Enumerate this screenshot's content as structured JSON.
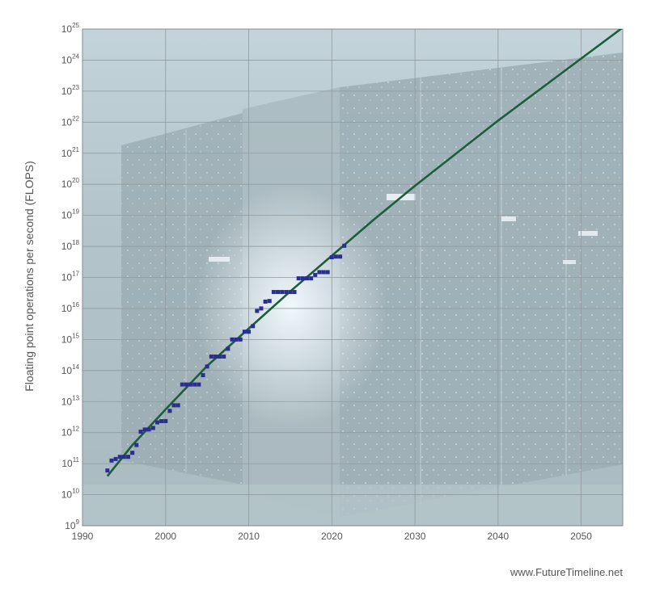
{
  "chart_data": {
    "type": "scatter",
    "ylabel": "Floating point operations per second (FLOPS)",
    "xlim": [
      1990,
      2055
    ],
    "ylim_log10": [
      9,
      25
    ],
    "yscale": "log",
    "grid": true,
    "x_ticks": [
      "1990",
      "2000",
      "2010",
      "2020",
      "2030",
      "2040",
      "2050"
    ],
    "y_ticks": [
      {
        "base": "10",
        "exp": "9"
      },
      {
        "base": "10",
        "exp": "10"
      },
      {
        "base": "10",
        "exp": "11"
      },
      {
        "base": "10",
        "exp": "12"
      },
      {
        "base": "10",
        "exp": "13"
      },
      {
        "base": "10",
        "exp": "14"
      },
      {
        "base": "10",
        "exp": "15"
      },
      {
        "base": "10",
        "exp": "16"
      },
      {
        "base": "10",
        "exp": "17"
      },
      {
        "base": "10",
        "exp": "18"
      },
      {
        "base": "10",
        "exp": "19"
      },
      {
        "base": "10",
        "exp": "20"
      },
      {
        "base": "10",
        "exp": "21"
      },
      {
        "base": "10",
        "exp": "22"
      },
      {
        "base": "10",
        "exp": "23"
      },
      {
        "base": "10",
        "exp": "24"
      },
      {
        "base": "10",
        "exp": "25"
      }
    ],
    "series": [
      {
        "kind": "scatter",
        "color": "#2a2f8f",
        "x": [
          1993.0,
          1993.5,
          1994.0,
          1994.5,
          1995.0,
          1995.5,
          1996.0,
          1996.5,
          1997.0,
          1997.5,
          1998.0,
          1998.5,
          1999.0,
          1999.5,
          2000.0,
          2000.5,
          2001.0,
          2001.5,
          2002.0,
          2002.5,
          2003.0,
          2003.5,
          2004.0,
          2004.5,
          2005.0,
          2005.5,
          2006.0,
          2006.5,
          2007.0,
          2007.5,
          2008.0,
          2008.5,
          2009.0,
          2009.5,
          2010.0,
          2010.5,
          2011.0,
          2011.5,
          2012.0,
          2012.5,
          2013.0,
          2013.5,
          2014.0,
          2014.5,
          2015.0,
          2015.5,
          2016.0,
          2016.5,
          2017.0,
          2017.5,
          2018.0,
          2018.5,
          2019.0,
          2019.5,
          2020.0,
          2020.5,
          2021.0,
          2021.5
        ],
        "y_log10": [
          10.78,
          11.1,
          11.15,
          11.22,
          11.22,
          11.22,
          11.35,
          11.6,
          12.03,
          12.1,
          12.1,
          12.15,
          12.33,
          12.37,
          12.37,
          12.7,
          12.88,
          12.88,
          13.55,
          13.55,
          13.55,
          13.55,
          13.55,
          13.85,
          14.13,
          14.45,
          14.45,
          14.45,
          14.45,
          14.7,
          15.0,
          15.0,
          15.0,
          15.25,
          15.25,
          15.43,
          15.92,
          16.0,
          16.22,
          16.24,
          16.53,
          16.53,
          16.53,
          16.53,
          16.53,
          16.53,
          16.97,
          16.97,
          16.97,
          16.97,
          17.08,
          17.17,
          17.17,
          17.17,
          17.65,
          17.67,
          17.67,
          18.02
        ]
      },
      {
        "kind": "line",
        "color": "#1a5e3a",
        "x": [
          1993,
          1996,
          2000,
          2005,
          2010,
          2015,
          2020,
          2025,
          2030,
          2040,
          2050,
          2055
        ],
        "y_log10": [
          10.6,
          11.6,
          12.75,
          14.15,
          15.35,
          16.55,
          17.7,
          18.85,
          19.95,
          22.05,
          24.05,
          25.05
        ]
      }
    ],
    "background": {
      "sky": "#c5d7dd",
      "rack": "#9aabb2",
      "highlight": "#eaf3f7"
    }
  },
  "credit": "www.FutureTimeline.net"
}
